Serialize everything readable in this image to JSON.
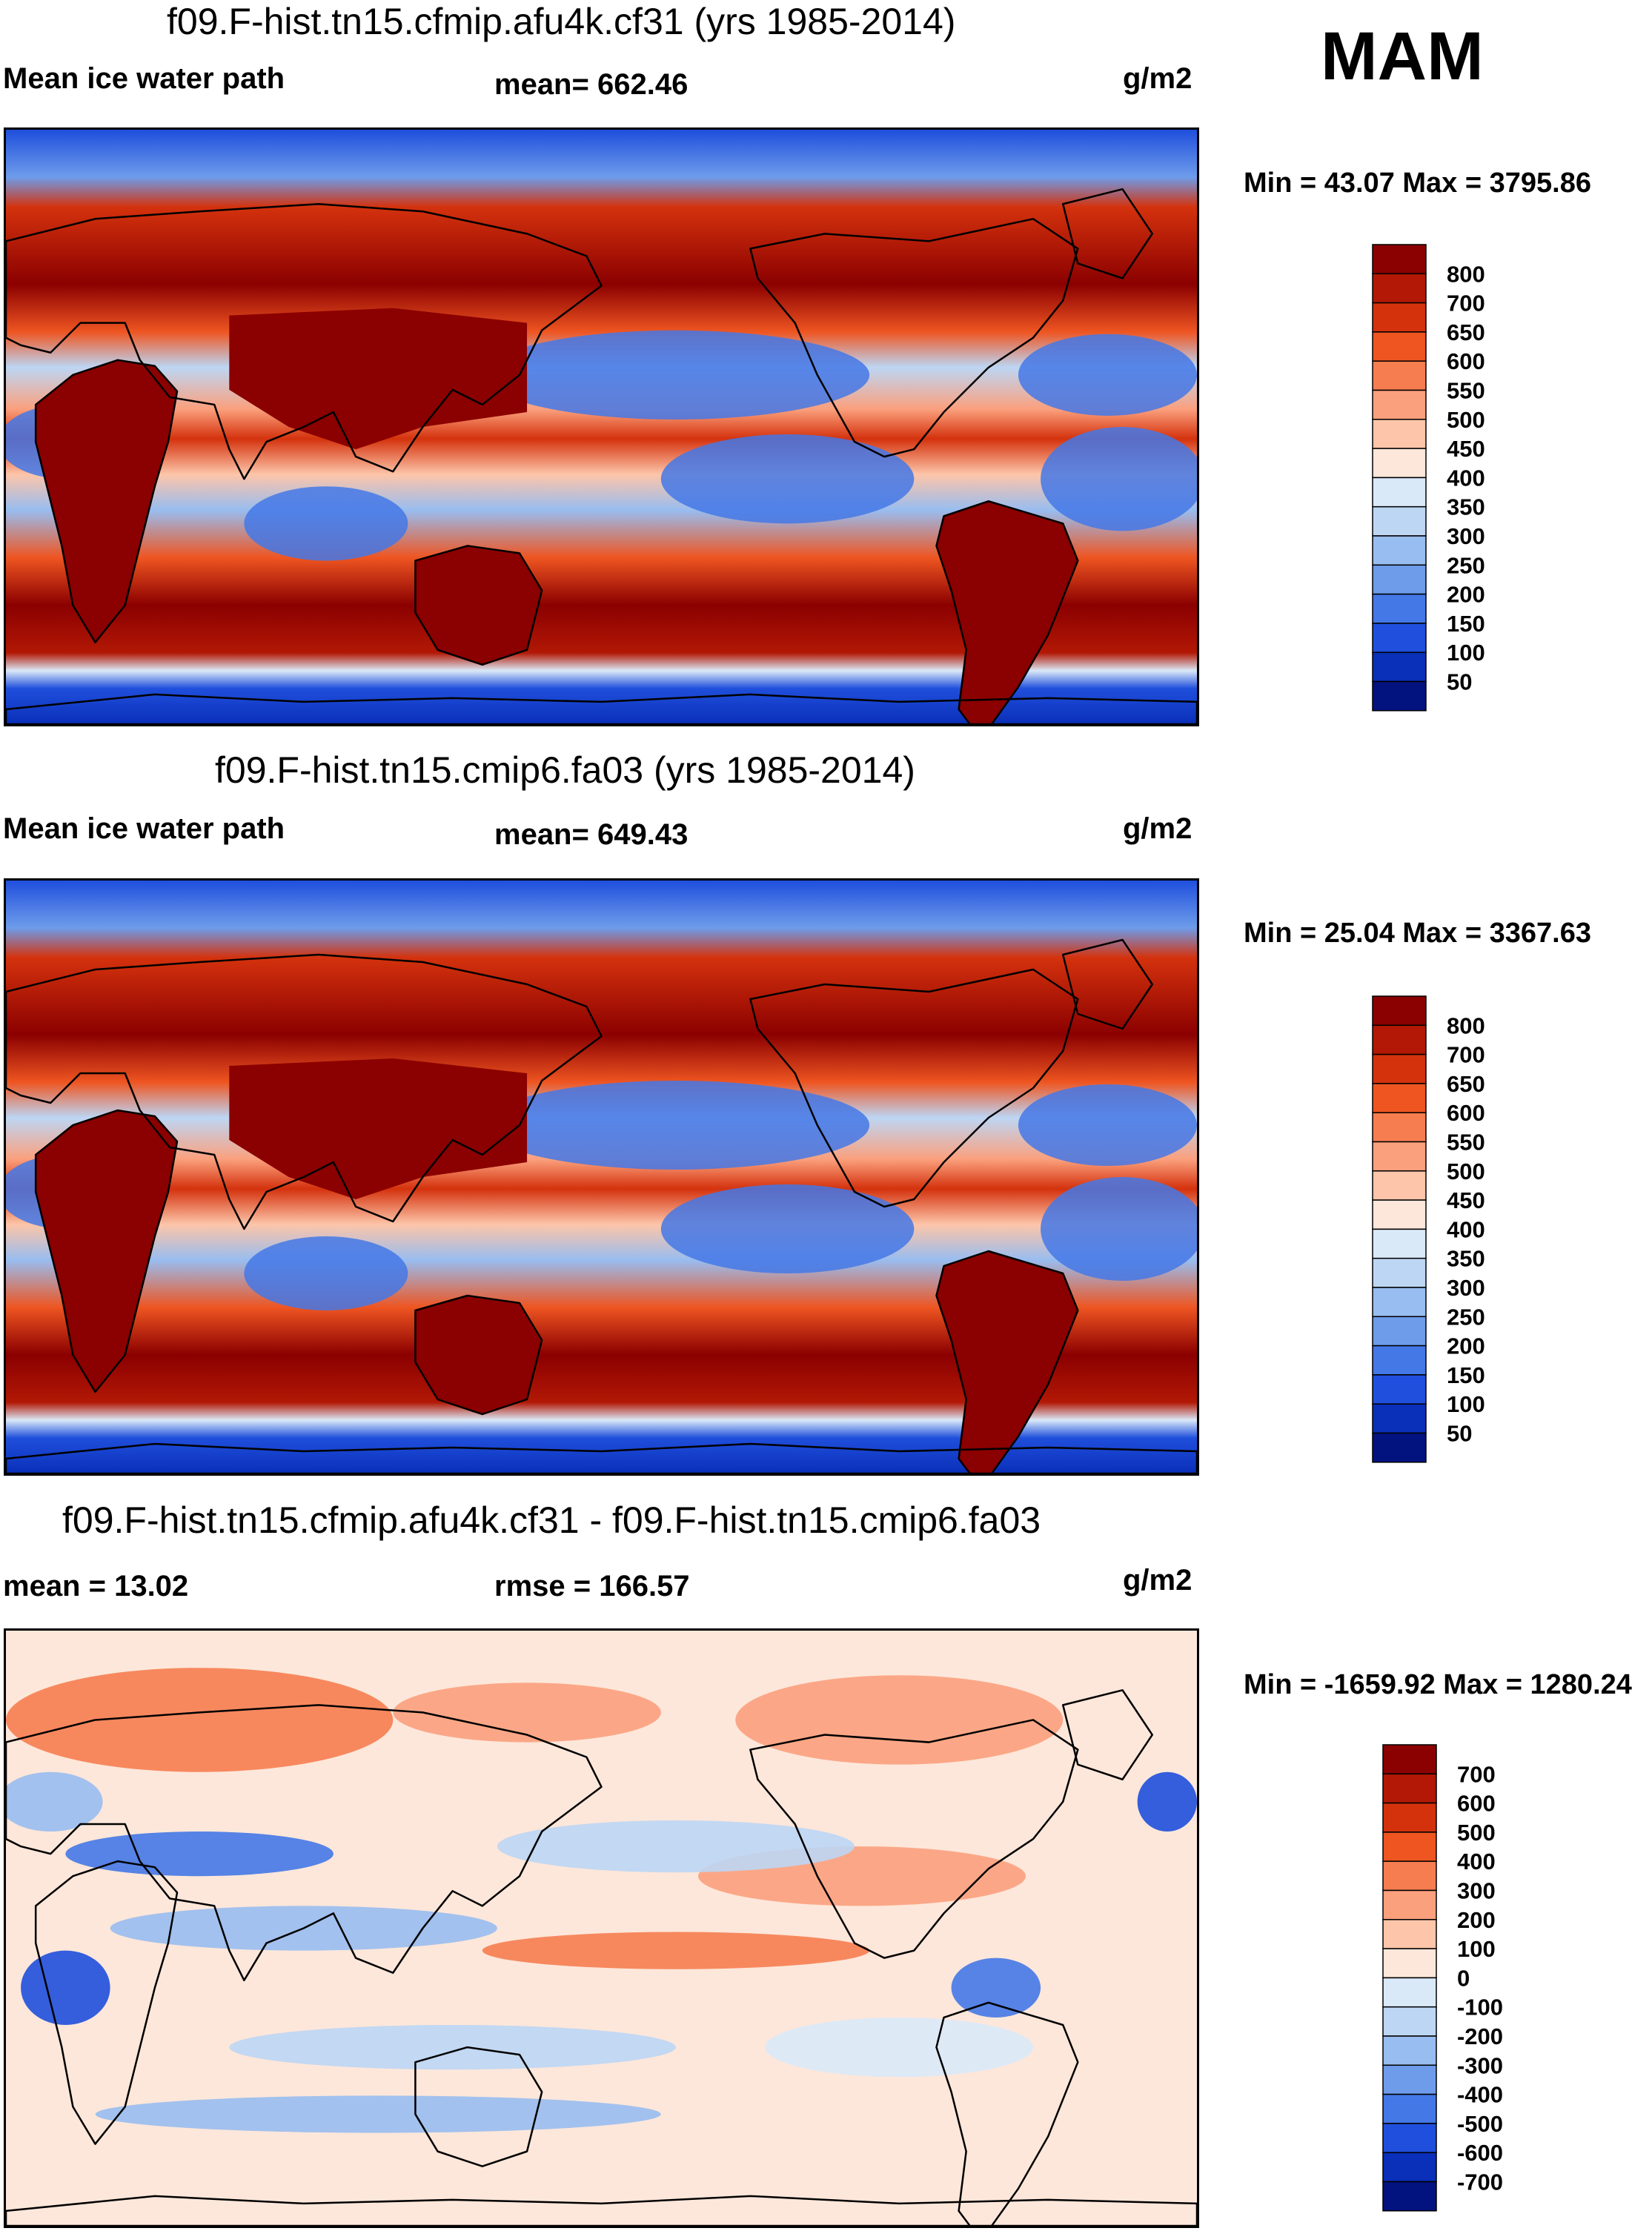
{
  "season": "MAM",
  "panels": [
    {
      "title": "f09.F-hist.tn15.cfmip.afu4k.cf31 (yrs 1985-2014)",
      "left_label": "Mean ice water path",
      "center_label": "mean= 662.46",
      "units": "g/m2",
      "minmax": "Min =  43.07 Max = 3795.86",
      "variant": "model"
    },
    {
      "title": "f09.F-hist.tn15.cmip6.fa03 (yrs 1985-2014)",
      "left_label": "Mean ice water path",
      "center_label": "mean= 649.43",
      "units": "g/m2",
      "minmax": "Min =  25.04 Max = 3367.63",
      "variant": "model"
    },
    {
      "title": "f09.F-hist.tn15.cfmip.afu4k.cf31 - f09.F-hist.tn15.cmip6.fa03",
      "left_label": "mean =  13.02",
      "center_label": "rmse = 166.57",
      "units": "g/m2",
      "minmax": "Min = -1659.92 Max = 1280.24",
      "variant": "diff"
    }
  ],
  "colorbars": {
    "model": {
      "labels": [
        "800",
        "700",
        "650",
        "600",
        "550",
        "500",
        "450",
        "400",
        "350",
        "300",
        "250",
        "200",
        "150",
        "100",
        "50"
      ],
      "colors": [
        "#8b0000",
        "#b21805",
        "#d4320d",
        "#ee5521",
        "#f67d50",
        "#fba07d",
        "#fdc5a9",
        "#fde7da",
        "#dae9f8",
        "#bdd6f4",
        "#98bdf0",
        "#6e9ceb",
        "#4478e6",
        "#1f4fdc",
        "#0a2fb8",
        "#02127f"
      ]
    },
    "diff": {
      "labels": [
        "700",
        "600",
        "500",
        "400",
        "300",
        "200",
        "100",
        "0",
        "-100",
        "-200",
        "-300",
        "-400",
        "-500",
        "-600",
        "-700"
      ],
      "colors": [
        "#8b0000",
        "#b21805",
        "#d4320d",
        "#ee5521",
        "#f67d50",
        "#fba07d",
        "#fdc5a9",
        "#fde7da",
        "#dae9f8",
        "#bdd6f4",
        "#98bdf0",
        "#6e9ceb",
        "#4478e6",
        "#1f4fdc",
        "#0a2fb8",
        "#02127f"
      ]
    }
  }
}
